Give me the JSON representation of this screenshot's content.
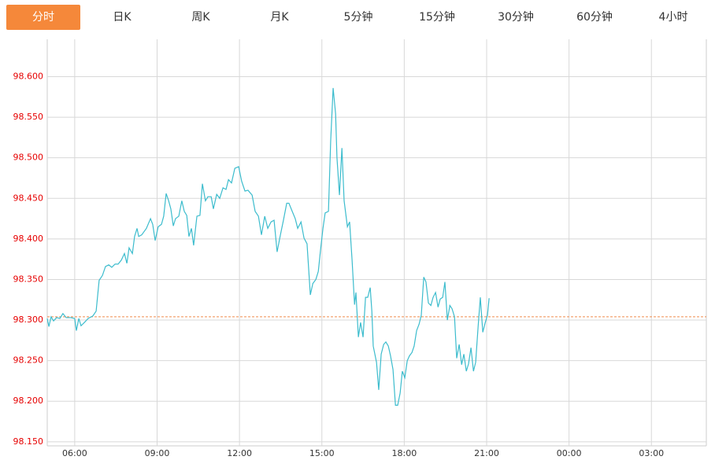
{
  "tabs": [
    "分时",
    "日K",
    "周K",
    "月K",
    "5分钟",
    "15分钟",
    "30分钟",
    "60分钟",
    "4小时"
  ],
  "active_tab": 0,
  "chart_data": {
    "type": "line",
    "color": "#3cbccd",
    "reference_line": 98.304,
    "reference_color": "#f08a4b",
    "grid": true,
    "xlim": [
      5,
      29
    ],
    "xticks": [
      {
        "value": 6,
        "label": "06:00"
      },
      {
        "value": 9,
        "label": "09:00"
      },
      {
        "value": 12,
        "label": "12:00"
      },
      {
        "value": 15,
        "label": "15:00"
      },
      {
        "value": 18,
        "label": "18:00"
      },
      {
        "value": 21,
        "label": "21:00"
      },
      {
        "value": 24,
        "label": "00:00"
      },
      {
        "value": 27,
        "label": "03:00"
      }
    ],
    "ylim": [
      98.145,
      98.646
    ],
    "yticks": [
      {
        "value": 98.15,
        "label": "98.150"
      },
      {
        "value": 98.2,
        "label": "98.200"
      },
      {
        "value": 98.25,
        "label": "98.250"
      },
      {
        "value": 98.3,
        "label": "98.300"
      },
      {
        "value": 98.35,
        "label": "98.350"
      },
      {
        "value": 98.4,
        "label": "98.400"
      },
      {
        "value": 98.45,
        "label": "98.450"
      },
      {
        "value": 98.5,
        "label": "98.500"
      },
      {
        "value": 98.55,
        "label": "98.550"
      },
      {
        "value": 98.6,
        "label": "98.600"
      }
    ],
    "x": [
      5.0,
      5.06,
      5.14,
      5.23,
      5.34,
      5.46,
      5.57,
      5.69,
      5.86,
      6.0,
      6.06,
      6.15,
      6.23,
      6.35,
      6.49,
      6.66,
      6.78,
      6.89,
      7.01,
      7.12,
      7.24,
      7.35,
      7.47,
      7.58,
      7.7,
      7.81,
      7.9,
      7.98,
      8.1,
      8.18,
      8.27,
      8.33,
      8.44,
      8.61,
      8.76,
      8.84,
      8.93,
      9.04,
      9.16,
      9.24,
      9.33,
      9.42,
      9.5,
      9.59,
      9.67,
      9.79,
      9.9,
      9.99,
      10.08,
      10.16,
      10.25,
      10.33,
      10.45,
      10.56,
      10.65,
      10.76,
      10.85,
      10.97,
      11.05,
      11.17,
      11.28,
      11.4,
      11.51,
      11.6,
      11.71,
      11.83,
      11.97,
      12.08,
      12.2,
      12.31,
      12.46,
      12.57,
      12.69,
      12.8,
      12.92,
      13.03,
      13.15,
      13.26,
      13.37,
      13.49,
      13.6,
      13.72,
      13.8,
      13.92,
      14.03,
      14.12,
      14.24,
      14.35,
      14.46,
      14.58,
      14.67,
      14.78,
      14.87,
      14.95,
      15.04,
      15.12,
      15.24,
      15.32,
      15.41,
      15.5,
      15.55,
      15.64,
      15.73,
      15.81,
      15.93,
      16.01,
      16.1,
      16.19,
      16.24,
      16.33,
      16.41,
      16.5,
      16.59,
      16.67,
      16.76,
      16.82,
      16.87,
      16.99,
      17.07,
      17.16,
      17.25,
      17.33,
      17.42,
      17.5,
      17.59,
      17.68,
      17.76,
      17.85,
      17.93,
      18.02,
      18.11,
      18.19,
      18.28,
      18.36,
      18.45,
      18.54,
      18.62,
      18.71,
      18.79,
      18.88,
      18.97,
      19.05,
      19.14,
      19.23,
      19.31,
      19.4,
      19.48,
      19.57,
      19.66,
      19.74,
      19.83,
      19.91,
      20.0,
      20.09,
      20.17,
      20.26,
      20.34,
      20.43,
      20.52,
      20.6,
      20.69,
      20.77,
      20.86,
      20.95,
      21.03,
      21.09
    ],
    "values": [
      98.302,
      98.292,
      98.304,
      98.299,
      98.303,
      98.302,
      98.308,
      98.303,
      98.303,
      98.302,
      98.287,
      98.302,
      98.293,
      98.297,
      98.302,
      98.305,
      98.311,
      98.349,
      98.355,
      98.366,
      98.368,
      98.365,
      98.369,
      98.369,
      98.374,
      98.382,
      98.37,
      98.389,
      98.382,
      98.403,
      98.413,
      98.403,
      98.405,
      98.413,
      98.425,
      98.418,
      98.398,
      98.415,
      98.418,
      98.428,
      98.456,
      98.447,
      98.437,
      98.416,
      98.425,
      98.428,
      98.447,
      98.434,
      98.429,
      98.403,
      98.413,
      98.392,
      98.428,
      98.429,
      98.468,
      98.447,
      98.452,
      98.452,
      98.437,
      98.455,
      98.45,
      98.463,
      98.461,
      98.473,
      98.469,
      98.487,
      98.489,
      98.471,
      98.459,
      98.46,
      98.454,
      98.434,
      98.428,
      98.405,
      98.428,
      98.413,
      98.421,
      98.423,
      98.384,
      98.405,
      98.423,
      98.444,
      98.444,
      98.434,
      98.425,
      98.413,
      98.421,
      98.401,
      98.394,
      98.331,
      98.345,
      98.35,
      98.36,
      98.386,
      98.413,
      98.432,
      98.434,
      98.52,
      98.586,
      98.554,
      98.5,
      98.454,
      98.512,
      98.447,
      98.415,
      98.421,
      98.374,
      98.319,
      98.334,
      98.279,
      98.297,
      98.279,
      98.328,
      98.328,
      98.34,
      98.311,
      98.268,
      98.248,
      98.214,
      98.258,
      98.27,
      98.273,
      98.268,
      98.256,
      98.239,
      98.195,
      98.195,
      98.21,
      98.237,
      98.229,
      98.25,
      98.256,
      98.26,
      98.268,
      98.287,
      98.295,
      98.306,
      98.353,
      98.347,
      98.321,
      98.318,
      98.328,
      98.334,
      98.316,
      98.326,
      98.328,
      98.347,
      98.3,
      98.318,
      98.314,
      98.304,
      98.253,
      98.27,
      98.245,
      98.258,
      98.237,
      98.246,
      98.266,
      98.237,
      98.248,
      98.292,
      98.328,
      98.285,
      98.297,
      98.306,
      98.327
    ]
  }
}
